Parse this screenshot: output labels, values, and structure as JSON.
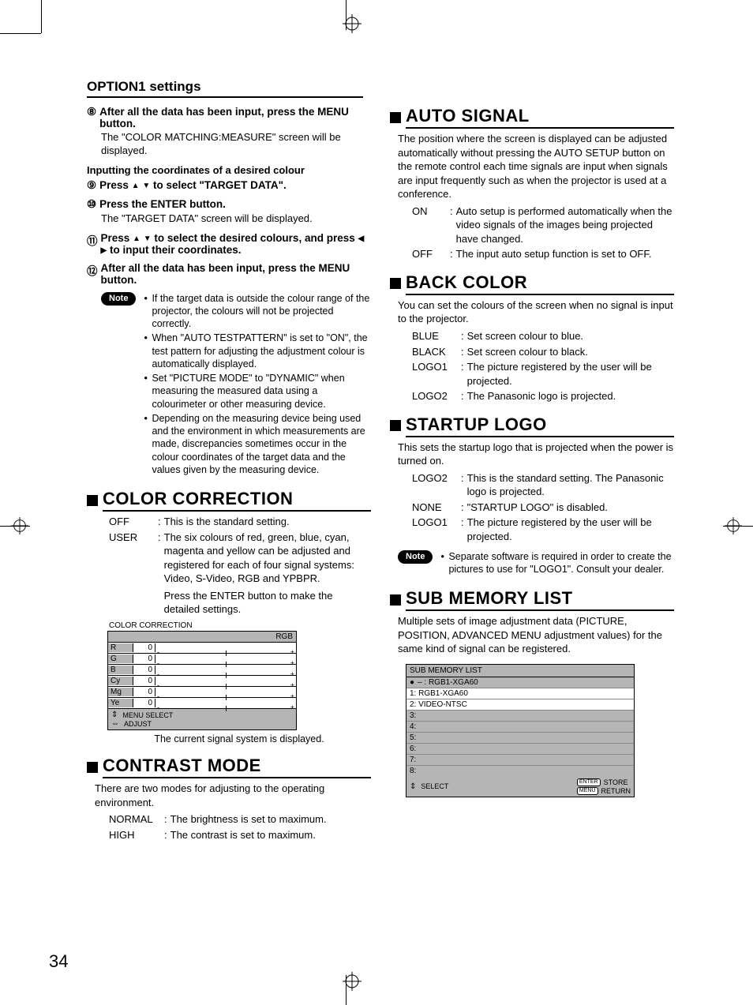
{
  "page_number": "34",
  "page_title": "OPTION1 settings",
  "left": {
    "steps": [
      {
        "num": "⑧",
        "head": "After all the data has been input, press the MENU button.",
        "body": "The \"COLOR MATCHING:MEASURE\" screen will be displayed."
      }
    ],
    "sub_a_title": "Inputting the coordinates of a desired colour",
    "step9": {
      "num": "⑨",
      "head_pre": "Press ",
      "head_mid": " to select \"TARGET DATA\"."
    },
    "step10": {
      "num": "⑩",
      "head": "Press the ENTER button.",
      "body": "The \"TARGET DATA\" screen will be displayed."
    },
    "step11": {
      "num": "⑪",
      "head_a": "Press ",
      "head_b": " to select the desired colours, and press ",
      "head_c": " to input their coordinates."
    },
    "step12": {
      "num": "⑫",
      "head": "After all the data has been input, press the MENU button."
    },
    "note_label": "Note",
    "notes": [
      "If the target data is outside the colour range of the projector, the colours will not be projected correctly.",
      "When \"AUTO TESTPATTERN\" is set to \"ON\", the test pattern for adjusting the adjustment colour is automatically displayed.",
      "Set \"PICTURE MODE\" to \"DYNAMIC\" when measuring the measured data using a colourimeter or other measuring device.",
      "Depending on the measuring device being used and the environment in which measurements are made, discrepancies sometimes occur in the colour coordinates of the target data and the values given by the measuring device."
    ],
    "color_correction": {
      "title": "COLOR CORRECTION",
      "options": [
        {
          "label": "OFF",
          "desc": "This is the standard setting."
        },
        {
          "label": "USER",
          "desc": "The six colours of red, green, blue, cyan, magenta and yellow can be adjusted and registered for each of four signal systems: Video, S-Video, RGB and YPBPR."
        }
      ],
      "enter_hint": "Press the ENTER button to make the detailed settings.",
      "panel": {
        "title": "COLOR CORRECTION",
        "header": "RGB",
        "rows": [
          {
            "name": "R",
            "val": "0"
          },
          {
            "name": "G",
            "val": "0"
          },
          {
            "name": "B",
            "val": "0"
          },
          {
            "name": "Cy",
            "val": "0"
          },
          {
            "name": "Mg",
            "val": "0"
          },
          {
            "name": "Ye",
            "val": "0"
          }
        ],
        "foot1": "MENU SELECT",
        "foot2": "ADJUST"
      },
      "caption": "The current signal system is displayed."
    },
    "contrast_mode": {
      "title": "CONTRAST MODE",
      "intro": "There are two modes for adjusting to the operating environment.",
      "options": [
        {
          "label": "NORMAL",
          "desc": "The brightness is set to maximum."
        },
        {
          "label": "HIGH",
          "desc": "The contrast is set to maximum."
        }
      ]
    }
  },
  "right": {
    "auto_signal": {
      "title": "AUTO SIGNAL",
      "intro": "The position where the screen is displayed can be adjusted automatically without pressing the AUTO SETUP button on the remote control each time signals are input when signals are input frequently such as when the projector is used at a conference.",
      "options": [
        {
          "label": "ON",
          "desc": "Auto setup is performed automatically when the video signals of the images being projected have changed."
        },
        {
          "label": "OFF",
          "desc": "The input auto setup function is set to OFF."
        }
      ]
    },
    "back_color": {
      "title": "BACK COLOR",
      "intro": "You can set the colours of the screen when no signal is input to the projector.",
      "options": [
        {
          "label": "BLUE",
          "desc": "Set screen colour to blue."
        },
        {
          "label": "BLACK",
          "desc": "Set screen colour to black."
        },
        {
          "label": "LOGO1",
          "desc": "The picture registered by the user will be projected."
        },
        {
          "label": "LOGO2",
          "desc": "The Panasonic logo is projected."
        }
      ]
    },
    "startup_logo": {
      "title": "STARTUP LOGO",
      "intro": "This sets the startup logo that is projected when the power is turned on.",
      "options": [
        {
          "label": "LOGO2",
          "desc": "This is the standard setting. The Panasonic logo is projected."
        },
        {
          "label": "NONE",
          "desc": "\"STARTUP LOGO\" is disabled."
        },
        {
          "label": "LOGO1",
          "desc": "The picture registered by the user will be projected."
        }
      ],
      "note_label": "Note",
      "note": "Separate software is required in order to create the pictures to use for \"LOGO1\". Consult your dealer."
    },
    "sub_memory": {
      "title": "SUB MEMORY LIST",
      "intro": "Multiple sets of image adjustment data (PICTURE, POSITION, ADVANCED MENU adjustment values) for the same kind of signal can be registered.",
      "panel": {
        "title": "SUB MEMORY LIST",
        "rows": [
          {
            "hl": true,
            "text": "– : RGB1-XGA60",
            "dot": true
          },
          {
            "hl": false,
            "text": "1: RGB1-XGA60"
          },
          {
            "hl": false,
            "text": "2: VIDEO-NTSC"
          },
          {
            "hl": true,
            "text": "3:"
          },
          {
            "hl": true,
            "text": "4:"
          },
          {
            "hl": true,
            "text": "5:"
          },
          {
            "hl": true,
            "text": "6:"
          },
          {
            "hl": true,
            "text": "7:"
          },
          {
            "hl": true,
            "text": "8:"
          }
        ],
        "select": "SELECT",
        "enter": "ENTER",
        "store": "STORE",
        "menu": "MENU",
        "ret": "RETURN"
      }
    }
  },
  "colors": {
    "panel_gray": "#b5b5b5"
  }
}
